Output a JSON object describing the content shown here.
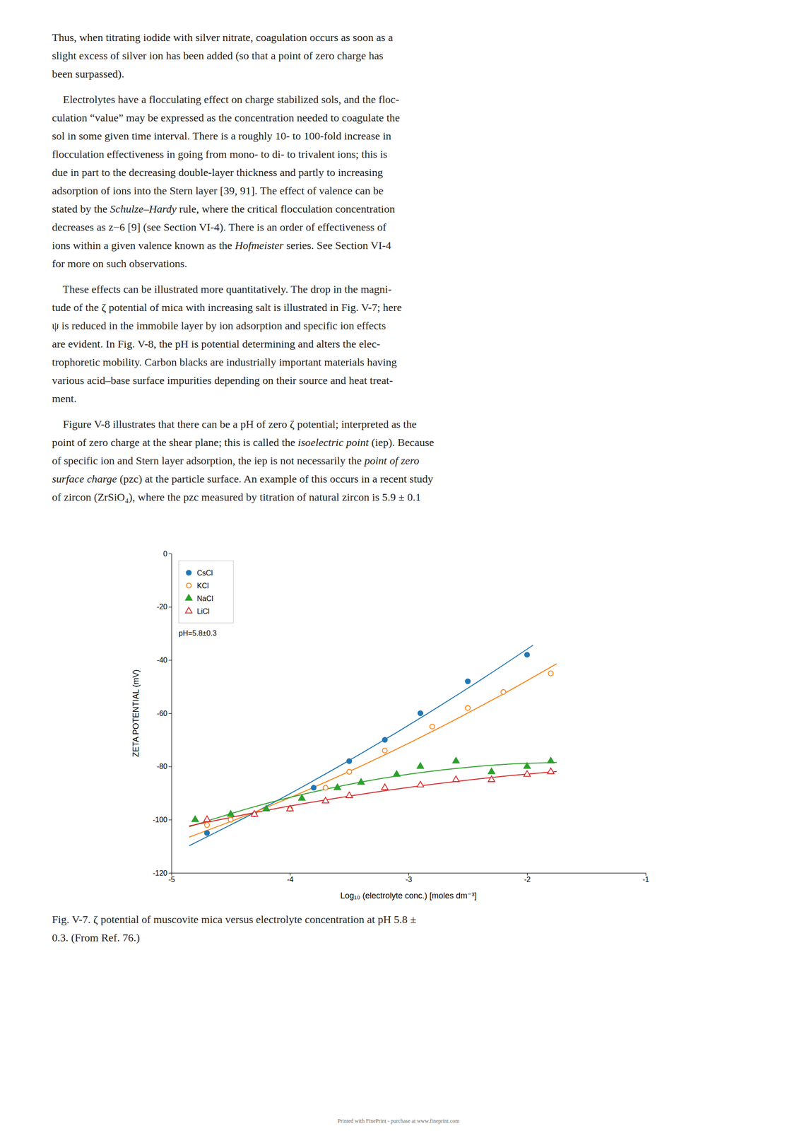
{
  "paragraphs": [
    [
      "Thus, when titrating iodide with silver nitrate, coagulation occurs as soon as a",
      "slight excess of silver ion has been added (so that a point of zero charge has",
      "been surpassed)."
    ],
    [
      "    Electrolytes have a flocculating effect on charge stabilized sols, and the floc-",
      "culation “value” may be expressed as the concentration needed to coagulate the",
      "sol in some given time interval. There is a roughly 10- to 100-fold increase in",
      "flocculation effectiveness in going from mono- to di- to trivalent ions; this is",
      "due in part to the decreasing double-layer thickness and partly to increasing",
      "adsorption of ions into the Stern layer [39, 91]. The effect of valence can be",
      [
        "stated by the ",
        {
          "em": "Schulze–Hardy"
        },
        " rule, where the critical flocculation concentration"
      ],
      "decreases as z−6 [9] (see Section VI-4). There is an order of effectiveness of",
      [
        "ions within a given valence known as the ",
        {
          "em": "Hofmeister"
        },
        " series. See Section VI-4"
      ],
      "for more on such observations."
    ],
    [
      "    These effects can be illustrated more quantitatively. The drop in the magni-",
      "tude of the ζ potential of mica with increasing salt is illustrated in Fig. V-7; here",
      "ψ is reduced in the immobile layer by ion adsorption and specific ion effects",
      "are evident. In Fig. V-8, the pH is potential determining and alters the elec-",
      "trophoretic mobility. Carbon blacks are industrially important materials having",
      "various acid–base surface impurities depending on their source and heat treat-",
      "ment."
    ],
    [
      "    Figure V-8 illustrates that there can be a pH of zero ζ potential; interpreted as the",
      [
        "point of zero charge at the shear plane; this is called the ",
        {
          "em": "isoelectric point"
        },
        " (iep). Because"
      ],
      [
        "of specific ion and Stern layer adsorption, the iep is not necessarily the ",
        {
          "em": "point of zero"
        }
      ],
      [
        {
          "em": "surface charge"
        },
        " (pzc) at the particle surface. An example of this occurs in a recent study"
      ],
      "of zircon (ZrSiO₄), where the pzc measured by titration of natural zircon is 5.9 ± 0.1"
    ]
  ],
  "chart_data": {
    "type": "scatter",
    "xlabel": "Log₁₀ (electrolyte conc.) [moles dm⁻³]",
    "ylabel": "ZETA POTENTIAL (mV)",
    "xlim": [
      -5,
      -1
    ],
    "ylim": [
      -120,
      0
    ],
    "xticks": [
      -5,
      -4,
      -3,
      -2,
      -1
    ],
    "yticks": [
      0,
      -20,
      -40,
      -60,
      -80,
      -100,
      -120
    ],
    "grid": false,
    "legend": "upper left",
    "annotations": [
      "pH=5.8±0.3"
    ],
    "caption": [
      "Fig. V-7. ζ potential of muscovite mica versus electrolyte concentration at pH 5.8 ±",
      "0.3. (From Ref. 76.)"
    ],
    "series": [
      {
        "name": "CsCl",
        "marker": "circle",
        "x": [
          -4.7,
          -4.3,
          -3.8,
          -3.5,
          -3.2,
          -2.9,
          -2.5,
          -2.0
        ],
        "values": [
          -105,
          -98,
          -88,
          -78,
          -70,
          -60,
          -48,
          -38
        ]
      },
      {
        "name": "KCl",
        "marker": "circle-open",
        "x": [
          -4.7,
          -4.5,
          -4.0,
          -3.7,
          -3.5,
          -3.2,
          -2.8,
          -2.5,
          -2.2,
          -1.8
        ],
        "values": [
          -102,
          -100,
          -96,
          -88,
          -82,
          -74,
          -65,
          -58,
          -52,
          -45
        ]
      },
      {
        "name": "NaCl",
        "marker": "triangle",
        "x": [
          -4.8,
          -4.5,
          -4.2,
          -3.9,
          -3.6,
          -3.4,
          -3.1,
          -2.9,
          -2.6,
          -2.3,
          -2.0,
          -1.8
        ],
        "values": [
          -100,
          -98,
          -96,
          -92,
          -88,
          -86,
          -83,
          -80,
          -78,
          -82,
          -80,
          -78
        ]
      },
      {
        "name": "LiCl",
        "marker": "triangle-open",
        "x": [
          -4.7,
          -4.3,
          -4.0,
          -3.7,
          -3.5,
          -3.2,
          -2.9,
          -2.6,
          -2.3,
          -2.0,
          -1.8
        ],
        "values": [
          -100,
          -98,
          -96,
          -93,
          -91,
          -88,
          -87,
          -85,
          -85,
          -83,
          -82
        ]
      },
      {
        "type": "line",
        "line_style": "solid",
        "x": [
          -4.85,
          -4.35,
          -3.85,
          -3.35,
          -2.85,
          -2.35,
          -1.95
        ],
        "values": [
          -109.8,
          -98.53,
          -86.54,
          -73.83,
          -60.4,
          -46.25,
          -34.41
        ]
      },
      {
        "type": "line",
        "line_style": "solid",
        "x": [
          -4.85,
          -4.35,
          -3.85,
          -3.35,
          -2.85,
          -2.35,
          -2.05,
          -1.75
        ],
        "values": [
          -106.56,
          -98.08,
          -88.82,
          -78.78,
          -67.96,
          -56.35,
          -49.01,
          -41.38
        ]
      },
      {
        "type": "line",
        "line_style": "solid",
        "x": [
          -4.85,
          -4.35,
          -3.85,
          -3.35,
          -2.85,
          -2.35,
          -2.05,
          -1.75
        ],
        "values": [
          -102.65,
          -95.77,
          -90.04,
          -85.45,
          -82.01,
          -79.71,
          -78.88,
          -78.47
        ]
      },
      {
        "type": "line",
        "line_style": "solid",
        "x": [
          -4.85,
          -4.35,
          -3.85,
          -3.35,
          -2.85,
          -2.35,
          -2.05,
          -1.75
        ],
        "values": [
          -102.36,
          -97.79,
          -93.7,
          -90.11,
          -87,
          -84.39,
          -83.05,
          -81.89
        ]
      }
    ]
  },
  "fineprint": "Printed with FinePrint - purchase at www.fineprint.com"
}
